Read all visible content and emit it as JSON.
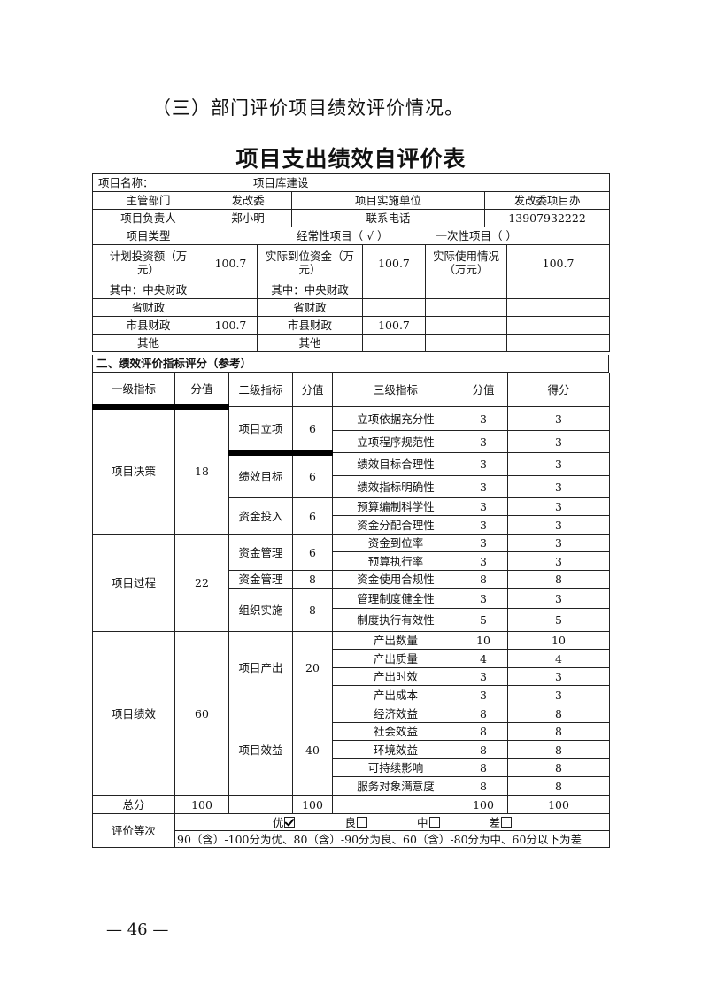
{
  "heading": "（三）部门评价项目绩效评价情况。",
  "title": "项目支出绩效自评价表",
  "info": {
    "project_name_label": "项目名称：",
    "project_name": "项目库建设",
    "dept_label": "主管部门",
    "dept": "发改委",
    "impl_unit_label": "项目实施单位",
    "impl_unit": "发改委项目办",
    "owner_label": "项目负责人",
    "owner": "郑小明",
    "phone_label": "联系电话",
    "phone": "13907932222",
    "type_label": "项目类型",
    "type_regular": "经常性项目（ √ ）",
    "type_once": "一次性项目（   ）",
    "plan_label": "计划投资额（万元）",
    "plan": "100.7",
    "actual_label": "实际到位资金（万元）",
    "actual": "100.7",
    "used_label": "实际使用情况（万元）",
    "used": "100.7",
    "funding_rows": [
      {
        "plan_label": "其中：中央财政",
        "plan": "",
        "actual_label": "其中：中央财政",
        "actual": ""
      },
      {
        "plan_label": "省财政",
        "plan": "",
        "actual_label": "省财政",
        "actual": ""
      },
      {
        "plan_label": "市县财政",
        "plan": "100.7",
        "actual_label": "市县财政",
        "actual": "100.7"
      },
      {
        "plan_label": "其他",
        "plan": "",
        "actual_label": "其他",
        "actual": ""
      }
    ]
  },
  "section_title": "二、绩效评价指标评分（参考）",
  "headers": [
    "一级指标",
    "分值",
    "二级指标",
    "分值",
    "三级指标",
    "分值",
    "得分"
  ],
  "indicators": [
    {
      "name": "项目决策",
      "score": "18",
      "level2": [
        {
          "name": "项目立项",
          "score": "6",
          "items": [
            [
              "立项依据充分性",
              "3",
              "3"
            ],
            [
              "立项程序规范性",
              "3",
              "3"
            ]
          ]
        },
        {
          "name": "绩效目标",
          "score": "6",
          "items": [
            [
              "绩效目标合理性",
              "3",
              "3"
            ],
            [
              "绩效指标明确性",
              "3",
              "3"
            ]
          ]
        },
        {
          "name": "资金投入",
          "score": "6",
          "items": [
            [
              "预算编制科学性",
              "3",
              "3"
            ],
            [
              "资金分配合理性",
              "3",
              "3"
            ]
          ]
        }
      ]
    },
    {
      "name": "项目过程",
      "score": "22",
      "level2": [
        {
          "name": "资金管理",
          "score": "6",
          "items": [
            [
              "资金到位率",
              "3",
              "3"
            ],
            [
              "预算执行率",
              "3",
              "3"
            ]
          ]
        },
        {
          "name": "资金管理",
          "score": "8",
          "items": [
            [
              "资金使用合规性",
              "8",
              "8"
            ]
          ]
        },
        {
          "name": "组织实施",
          "score": "8",
          "items": [
            [
              "管理制度健全性",
              "3",
              "3"
            ],
            [
              "制度执行有效性",
              "5",
              "5"
            ]
          ]
        }
      ]
    },
    {
      "name": "项目绩效",
      "score": "60",
      "level2": [
        {
          "name": "项目产出",
          "score": "20",
          "items": [
            [
              "产出数量",
              "10",
              "10"
            ],
            [
              "产出质量",
              "4",
              "4"
            ],
            [
              "产出时效",
              "3",
              "3"
            ],
            [
              "产出成本",
              "3",
              "3"
            ]
          ]
        },
        {
          "name": "项目效益",
          "score": "40",
          "items": [
            [
              "经济效益",
              "8",
              "8"
            ],
            [
              "社会效益",
              "8",
              "8"
            ],
            [
              "环境效益",
              "8",
              "8"
            ],
            [
              "可持续影响",
              "8",
              "8"
            ],
            [
              "服务对象满意度",
              "8",
              "8"
            ]
          ]
        }
      ]
    }
  ],
  "total": {
    "label": "总分",
    "score1": "100",
    "score2": "100",
    "score3": "100",
    "got": "100"
  },
  "grade": {
    "label": "评价等次",
    "options": [
      {
        "label": "优",
        "checked": true
      },
      {
        "label": "良",
        "checked": false
      },
      {
        "label": "中",
        "checked": false
      },
      {
        "label": "差",
        "checked": false
      }
    ],
    "legend": "90（含）-100分为优、80（含）-90分为良、60（含）-80分为中、60分以下为差"
  },
  "page_number": "— 46 —"
}
